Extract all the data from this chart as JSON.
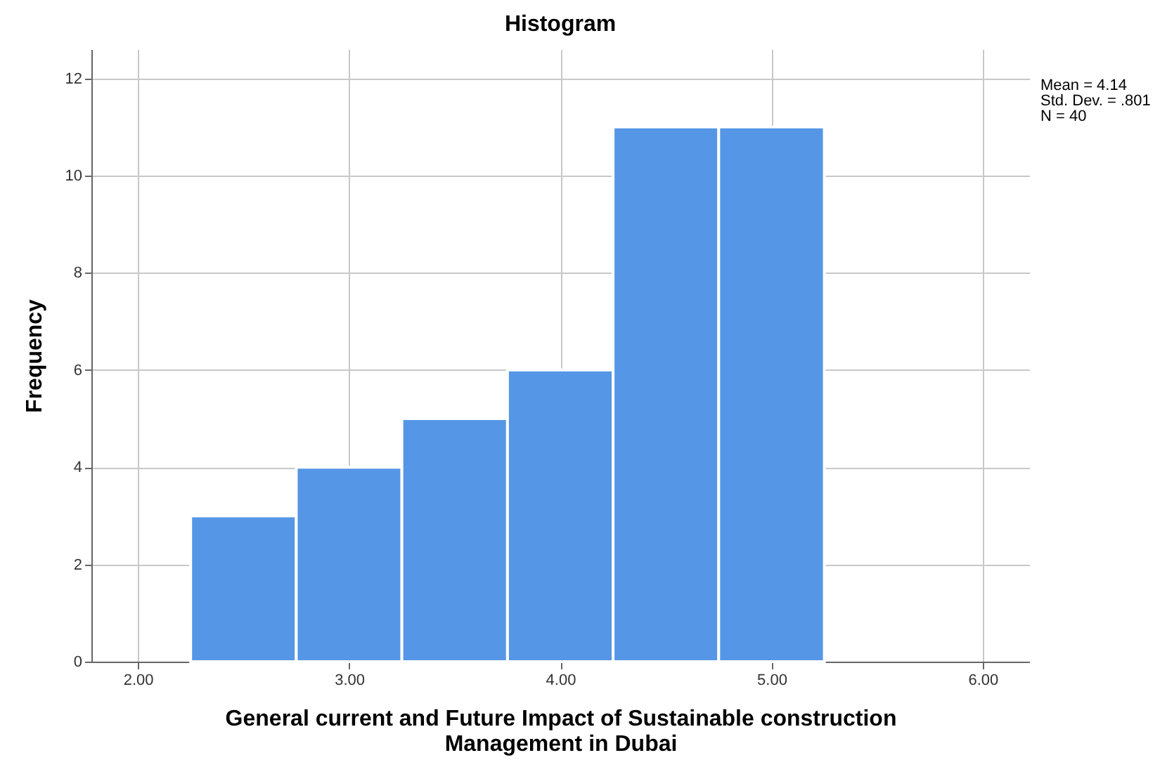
{
  "chart_data": {
    "type": "histogram",
    "title": "Histogram",
    "xlabel": "General current and Future Impact of Sustainable construction Management in Dubai",
    "ylabel": "Frequency",
    "bins": [
      2.25,
      2.75,
      3.25,
      3.75,
      4.25,
      4.75,
      5.25
    ],
    "values": [
      3,
      4,
      5,
      6,
      11,
      11
    ],
    "color": "#5596e6",
    "xlim": [
      1.78,
      6.22
    ],
    "ylim": [
      0,
      12.6
    ],
    "xticks": [
      {
        "value": 2,
        "label": "2.00"
      },
      {
        "value": 3,
        "label": "3.00"
      },
      {
        "value": 4,
        "label": "4.00"
      },
      {
        "value": 5,
        "label": "5.00"
      },
      {
        "value": 6,
        "label": "6.00"
      }
    ],
    "yticks": [
      0,
      2,
      4,
      6,
      8,
      10,
      12
    ],
    "grid": true,
    "annotations": [
      "Mean = 4.14",
      "Std. Dev. = .801",
      "N = 40"
    ]
  }
}
